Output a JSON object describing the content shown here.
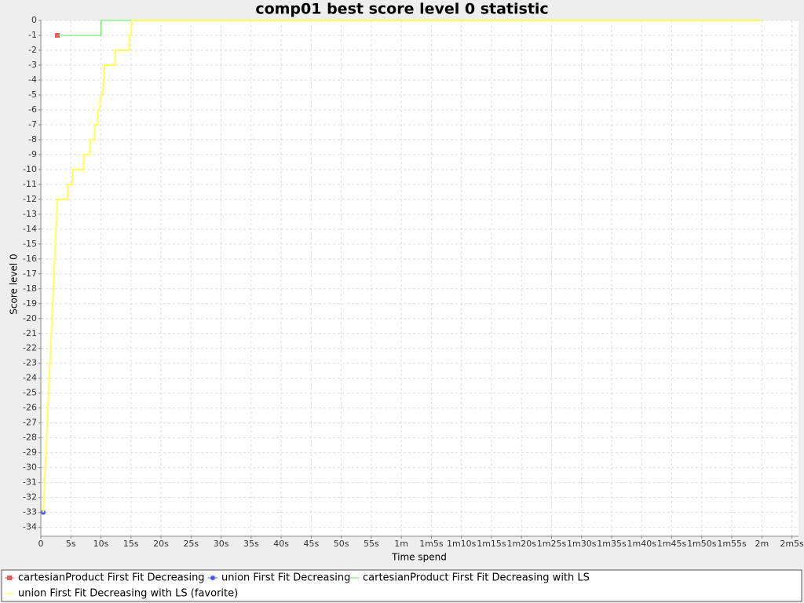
{
  "chart_data": {
    "type": "line",
    "title": "comp01 best score level 0 statistic",
    "x_label": "Time spend",
    "y_label": "Score level 0",
    "grid": true,
    "legend": "bottom",
    "xlim": [
      0,
      126.1
    ],
    "ylim": [
      -34.6,
      0
    ],
    "xticks": [
      0,
      {
        "value": 5,
        "label": "5s"
      },
      {
        "value": 10,
        "label": "10s"
      },
      {
        "value": 15,
        "label": "15s"
      },
      {
        "value": 20,
        "label": "20s"
      },
      {
        "value": 25,
        "label": "25s"
      },
      {
        "value": 30,
        "label": "30s"
      },
      {
        "value": 35,
        "label": "35s"
      },
      {
        "value": 40,
        "label": "40s"
      },
      {
        "value": 45,
        "label": "45s"
      },
      {
        "value": 50,
        "label": "50s"
      },
      {
        "value": 55,
        "label": "55s"
      },
      {
        "value": 60,
        "label": "1m"
      },
      {
        "value": 65,
        "label": "1m5s"
      },
      {
        "value": 70,
        "label": "1m10s"
      },
      {
        "value": 75,
        "label": "1m15s"
      },
      {
        "value": 80,
        "label": "1m20s"
      },
      {
        "value": 85,
        "label": "1m25s"
      },
      {
        "value": 90,
        "label": "1m30s"
      },
      {
        "value": 95,
        "label": "1m35s"
      },
      {
        "value": 100,
        "label": "1m40s"
      },
      {
        "value": 105,
        "label": "1m45s"
      },
      {
        "value": 110,
        "label": "1m50s"
      },
      {
        "value": 115,
        "label": "1m55s"
      },
      {
        "value": 120,
        "label": "2m"
      },
      {
        "value": 125,
        "label": "2m5s"
      }
    ],
    "yticks": [
      0,
      -1,
      -2,
      -3,
      -4,
      -5,
      -6,
      -7,
      -8,
      -9,
      -10,
      -11,
      -12,
      -13,
      -14,
      -15,
      -16,
      -17,
      -18,
      -19,
      -20,
      -21,
      -22,
      -23,
      -24,
      -25,
      -26,
      -27,
      -28,
      -29,
      -30,
      -31,
      -32,
      -33,
      -34
    ],
    "series": [
      {
        "name": "cartesianProduct First Fit Decreasing",
        "color": "#f55555",
        "marker": "square",
        "x": [
          2.75
        ],
        "values": [
          -1
        ]
      },
      {
        "name": "union First Fit Decreasing",
        "color": "#5555ff",
        "marker": "circle",
        "x": [
          0.4
        ],
        "values": [
          -33
        ]
      },
      {
        "name": "cartesianProduct First Fit Decreasing with LS",
        "color": "#55ee55",
        "x": [
          2.75,
          10,
          10,
          120
        ],
        "values": [
          -1,
          -1,
          0,
          0
        ]
      },
      {
        "name": "union First Fit Decreasing with LS (favorite)",
        "color": "#ffff55",
        "x": [
          0.4,
          2.75,
          4.45,
          4.45,
          5.2,
          5.35,
          7.05,
          7.2,
          8.1,
          8.25,
          8.9,
          9.0,
          9.4,
          9.55,
          9.8,
          9.95,
          10.3,
          10.6,
          12.3,
          12.4,
          14.65,
          14.8,
          15.0,
          15.15,
          120
        ],
        "values": [
          -33,
          -12,
          -12,
          -11,
          -11,
          -10,
          -10,
          -9,
          -9,
          -8,
          -8,
          -7,
          -7,
          -6,
          -6,
          -5,
          -5,
          -3,
          -3,
          -2,
          -2,
          -1,
          -1,
          0,
          0
        ]
      }
    ]
  }
}
